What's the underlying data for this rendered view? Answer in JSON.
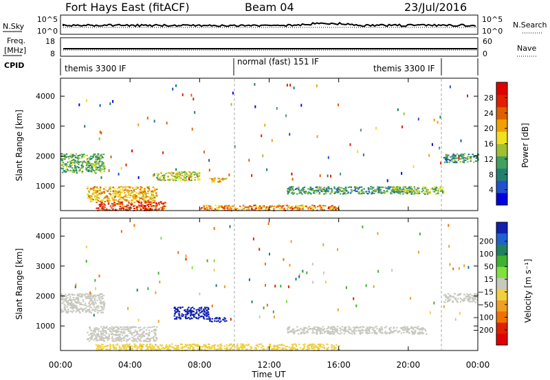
{
  "header": {
    "station": "Fort Hays East (fitACF)",
    "beam": "Beam 04",
    "date": "23/Jul/2016"
  },
  "noise_panel": {
    "left_label": "N.Sky",
    "right_label": "N.Search",
    "left_ticks": [
      "10^5",
      "10^0"
    ],
    "right_ticks": [
      "10^5",
      "10^0"
    ]
  },
  "freq_panel": {
    "left_label_1": "Freq.",
    "left_label_2": "[MHz]",
    "right_label": "Nave",
    "left_ticks": [
      "18",
      "8"
    ],
    "right_ticks": [
      "60",
      "0"
    ]
  },
  "cpid": {
    "label": "CPID",
    "segments": [
      {
        "name": "themis 3300 IF",
        "start_hour": 0.0,
        "end_hour": 10.0
      },
      {
        "name": "normal (fast) 151 IF",
        "start_hour": 10.0,
        "end_hour": 22.0
      },
      {
        "name": "themis 3300 IF",
        "start_hour": 22.0,
        "end_hour": 24.0
      }
    ]
  },
  "power_colorbar": {
    "label": "Power [dB]",
    "ticks": [
      "4",
      "8",
      "12",
      "16",
      "20",
      "24",
      "28"
    ],
    "colors": [
      "#0000e0",
      "#2050d0",
      "#208070",
      "#40a060",
      "#a0c030",
      "#f0e020",
      "#f0a000",
      "#e06000",
      "#e02000",
      "#e00000"
    ]
  },
  "velocity_colorbar": {
    "label": "Velocity [m s⁻¹]",
    "ticks": [
      "200",
      "100",
      "50",
      "15",
      "−15",
      "−50",
      "−100",
      "−200"
    ],
    "colors": [
      "#1020b0",
      "#2060d0",
      "#208060",
      "#40b030",
      "#80e040",
      "#c8c8c0",
      "#f0d040",
      "#f0a020",
      "#f07000",
      "#e02000",
      "#e00000"
    ]
  },
  "x_axis": {
    "label": "Time UT",
    "ticks": [
      "00:00",
      "04:00",
      "08:00",
      "12:00",
      "16:00",
      "20:00",
      "00:00"
    ]
  },
  "chart_data": [
    {
      "type": "heatmap",
      "title": "Power",
      "ylabel": "Slant Range [km]",
      "xlabel": "",
      "x_range_hours": [
        0,
        24
      ],
      "ylim": [
        180,
        4600
      ],
      "y_ticks": [
        1000,
        2000,
        3000,
        4000
      ],
      "colorbar_range_db": [
        0,
        32
      ],
      "features": [
        {
          "t0": 0.0,
          "t1": 2.5,
          "r0": 1450,
          "r1": 2100,
          "value": 12
        },
        {
          "t0": 1.5,
          "t1": 5.5,
          "r0": 500,
          "r1": 1000,
          "value": 20
        },
        {
          "t0": 2.0,
          "t1": 6.0,
          "r0": 200,
          "r1": 500,
          "value": 26
        },
        {
          "t0": 5.5,
          "t1": 8.0,
          "r0": 1200,
          "r1": 1500,
          "value": 16
        },
        {
          "t0": 8.5,
          "t1": 9.5,
          "r0": 1150,
          "r1": 1300,
          "value": 18
        },
        {
          "t0": 8.0,
          "t1": 16.0,
          "r0": 200,
          "r1": 380,
          "value": 22
        },
        {
          "t0": 13.0,
          "t1": 20.5,
          "r0": 750,
          "r1": 1000,
          "value": 10
        },
        {
          "t0": 19.0,
          "t1": 22.0,
          "r0": 750,
          "r1": 1000,
          "value": 14
        },
        {
          "t0": 22.0,
          "t1": 24.0,
          "r0": 1800,
          "r1": 2100,
          "value": 10
        }
      ]
    },
    {
      "type": "heatmap",
      "title": "Velocity",
      "ylabel": "Slant Range [km]",
      "xlabel": "Time UT",
      "x_range_hours": [
        0,
        24
      ],
      "ylim": [
        180,
        4600
      ],
      "y_ticks": [
        1000,
        2000,
        3000,
        4000
      ],
      "colorbar_range_ms": [
        -200,
        200
      ],
      "features": [
        {
          "t0": 0.0,
          "t1": 2.5,
          "r0": 1450,
          "r1": 2100,
          "value": 0
        },
        {
          "t0": 1.5,
          "t1": 5.5,
          "r0": 500,
          "r1": 1000,
          "value": 0
        },
        {
          "t0": 6.5,
          "t1": 8.5,
          "r0": 1250,
          "r1": 1650,
          "value": 210
        },
        {
          "t0": 8.5,
          "t1": 9.5,
          "r0": 1150,
          "r1": 1300,
          "value": 200
        },
        {
          "t0": 2.0,
          "t1": 16.0,
          "r0": 200,
          "r1": 420,
          "value": -40
        },
        {
          "t0": 13.0,
          "t1": 21.0,
          "r0": 750,
          "r1": 1000,
          "value": 0
        },
        {
          "t0": 22.0,
          "t1": 24.0,
          "r0": 1800,
          "r1": 2100,
          "value": 0
        }
      ]
    }
  ]
}
